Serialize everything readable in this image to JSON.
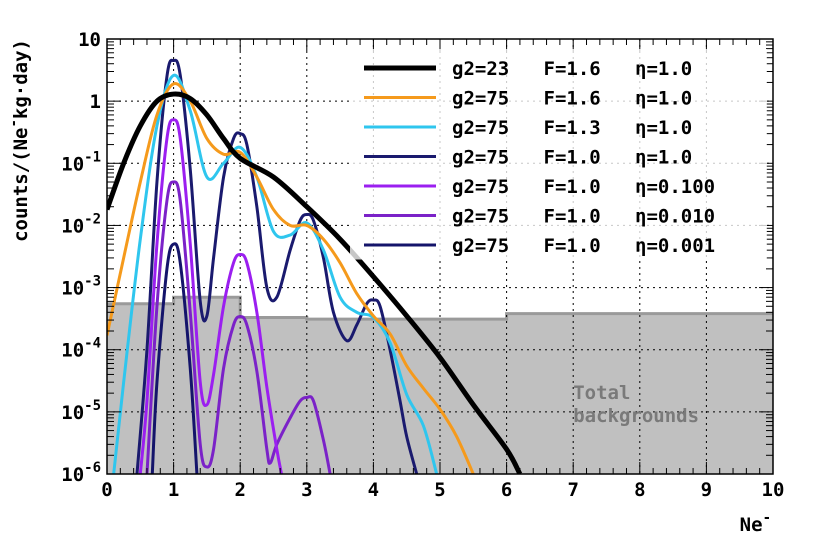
{
  "chart_data": {
    "type": "line",
    "xlabel": "Ne",
    "xlabel_sup": "-",
    "ylabel": "counts/(Ne",
    "ylabel_sup": "-",
    "ylabel_tail": "kg·day)",
    "xlim": [
      0,
      10
    ],
    "ylim": [
      1e-06,
      10
    ],
    "yscale": "log",
    "grid": true,
    "legend_placement": "top-right",
    "x_ticks": [
      "0",
      "1",
      "2",
      "3",
      "4",
      "5",
      "6",
      "7",
      "8",
      "9",
      "10"
    ],
    "y_ticks": [
      {
        "base": "10",
        "exp": "-6"
      },
      {
        "base": "10",
        "exp": "-5"
      },
      {
        "base": "10",
        "exp": "-4"
      },
      {
        "base": "10",
        "exp": "-3"
      },
      {
        "base": "10",
        "exp": "-2"
      },
      {
        "base": "10",
        "exp": "-1"
      },
      {
        "base": "1",
        "exp": ""
      },
      {
        "base": "10",
        "exp": ""
      }
    ],
    "annotation": [
      "Total",
      "backgrounds"
    ],
    "background": {
      "name": "Total backgrounds",
      "color": "#c0c0c0",
      "edge_color": "#9a9a9a",
      "steps": [
        {
          "x0": 0.0,
          "x1": 1.0,
          "y": 0.00055
        },
        {
          "x0": 1.0,
          "x1": 2.0,
          "y": 0.0007
        },
        {
          "x0": 2.0,
          "x1": 3.0,
          "y": 0.00033
        },
        {
          "x0": 3.0,
          "x1": 6.0,
          "y": 0.00031
        },
        {
          "x0": 6.0,
          "x1": 10.0,
          "y": 0.00038
        }
      ]
    },
    "legend": [
      {
        "label": "g2=23   F=1.6   η=1.0",
        "color": "#000000",
        "width": 5
      },
      {
        "label": "g2=75   F=1.6   η=1.0",
        "color": "#f59a1c",
        "width": 3
      },
      {
        "label": "g2=75   F=1.3   η=1.0",
        "color": "#2fc6ee",
        "width": 3
      },
      {
        "label": "g2=75   F=1.0   η=1.0",
        "color": "#1a1a6e",
        "width": 3
      },
      {
        "label": "g2=75   F=1.0   η=0.100",
        "color": "#9b1ff0",
        "width": 3
      },
      {
        "label": "g2=75   F=1.0   η=0.010",
        "color": "#7b22c8",
        "width": 3
      },
      {
        "label": "g2=75   F=1.0   η=0.001",
        "color": "#14146a",
        "width": 3
      }
    ],
    "series": [
      {
        "name": "g2=23   F=1.6   η=1.0",
        "color": "#000000",
        "width": 5,
        "points": [
          [
            0,
            0.018
          ],
          [
            0.25,
            0.1
          ],
          [
            0.5,
            0.4
          ],
          [
            0.75,
            1.0
          ],
          [
            1.0,
            1.3
          ],
          [
            1.25,
            1.1
          ],
          [
            1.5,
            0.6
          ],
          [
            1.75,
            0.25
          ],
          [
            2.0,
            0.12
          ],
          [
            2.5,
            0.06
          ],
          [
            3.0,
            0.02
          ],
          [
            3.5,
            0.006
          ],
          [
            4.0,
            0.0015
          ],
          [
            4.5,
            0.00035
          ],
          [
            5.0,
            7.5e-05
          ],
          [
            5.5,
            1.3e-05
          ],
          [
            6.0,
            2.5e-06
          ],
          [
            6.2,
            1e-06
          ]
        ]
      },
      {
        "name": "g2=75   F=1.6   η=1.0",
        "color": "#f59a1c",
        "width": 3,
        "points": [
          [
            0,
            0.00017
          ],
          [
            0.25,
            0.003
          ],
          [
            0.5,
            0.05
          ],
          [
            0.75,
            0.6
          ],
          [
            1.0,
            1.9
          ],
          [
            1.25,
            1.0
          ],
          [
            1.5,
            0.25
          ],
          [
            1.75,
            0.14
          ],
          [
            2.0,
            0.15
          ],
          [
            2.25,
            0.06
          ],
          [
            2.5,
            0.018
          ],
          [
            2.75,
            0.01
          ],
          [
            3.0,
            0.01
          ],
          [
            3.25,
            0.006
          ],
          [
            3.5,
            0.0025
          ],
          [
            3.75,
            0.0008
          ],
          [
            4.0,
            0.00035
          ],
          [
            4.25,
            0.00018
          ],
          [
            4.5,
            5.5e-05
          ],
          [
            4.75,
            2.4e-05
          ],
          [
            5.0,
            1.1e-05
          ],
          [
            5.25,
            4e-06
          ],
          [
            5.5,
            1e-06
          ]
        ]
      },
      {
        "name": "g2=75   F=1.3   η=1.0",
        "color": "#2fc6ee",
        "width": 3,
        "points": [
          [
            0.1,
            1e-06
          ],
          [
            0.25,
            3e-05
          ],
          [
            0.5,
            0.006
          ],
          [
            0.75,
            0.4
          ],
          [
            1.0,
            2.6
          ],
          [
            1.25,
            0.7
          ],
          [
            1.5,
            0.06
          ],
          [
            1.75,
            0.1
          ],
          [
            2.0,
            0.18
          ],
          [
            2.25,
            0.06
          ],
          [
            2.5,
            0.008
          ],
          [
            2.75,
            0.007
          ],
          [
            3.0,
            0.011
          ],
          [
            3.25,
            0.004
          ],
          [
            3.5,
            0.0007
          ],
          [
            3.75,
            0.0004
          ],
          [
            4.0,
            0.00033
          ],
          [
            4.25,
            0.00013
          ],
          [
            4.5,
            1.9e-05
          ],
          [
            4.75,
            6e-06
          ],
          [
            4.95,
            1e-06
          ]
        ]
      },
      {
        "name": "g2=75   F=1.0   η=1.0",
        "color": "#1a1a6e",
        "width": 3,
        "points": [
          [
            0.45,
            1e-06
          ],
          [
            0.6,
            0.0001
          ],
          [
            0.75,
            0.05
          ],
          [
            0.9,
            2.5
          ],
          [
            1.0,
            4.5
          ],
          [
            1.1,
            2.6
          ],
          [
            1.25,
            0.08
          ],
          [
            1.4,
            0.0006
          ],
          [
            1.5,
            0.00035
          ],
          [
            1.6,
            0.003
          ],
          [
            1.75,
            0.06
          ],
          [
            1.9,
            0.25
          ],
          [
            2.0,
            0.3
          ],
          [
            2.1,
            0.2
          ],
          [
            2.25,
            0.02
          ],
          [
            2.4,
            0.001
          ],
          [
            2.55,
            0.0007
          ],
          [
            2.75,
            0.004
          ],
          [
            2.9,
            0.012
          ],
          [
            3.0,
            0.015
          ],
          [
            3.1,
            0.012
          ],
          [
            3.25,
            0.003
          ],
          [
            3.4,
            0.0004
          ],
          [
            3.6,
            0.00014
          ],
          [
            3.75,
            0.00025
          ],
          [
            3.9,
            0.00055
          ],
          [
            4.0,
            0.00063
          ],
          [
            4.1,
            0.0005
          ],
          [
            4.25,
            0.0001
          ],
          [
            4.4,
            1.5e-05
          ],
          [
            4.5,
            4e-06
          ],
          [
            4.65,
            1e-06
          ]
        ]
      },
      {
        "name": "g2=75   F=1.0   η=0.100",
        "color": "#9b1ff0",
        "width": 3,
        "points": [
          [
            0.5,
            1e-06
          ],
          [
            0.6,
            1.5e-05
          ],
          [
            0.75,
            0.005
          ],
          [
            0.9,
            0.25
          ],
          [
            1.0,
            0.5
          ],
          [
            1.1,
            0.25
          ],
          [
            1.25,
            0.005
          ],
          [
            1.4,
            3e-05
          ],
          [
            1.5,
            1.3e-05
          ],
          [
            1.6,
            4e-05
          ],
          [
            1.75,
            0.0005
          ],
          [
            1.9,
            0.0025
          ],
          [
            2.0,
            0.0034
          ],
          [
            2.1,
            0.0025
          ],
          [
            2.25,
            0.0004
          ],
          [
            2.4,
            2.5e-05
          ],
          [
            2.55,
            2.5e-06
          ],
          [
            2.62,
            1e-06
          ]
        ]
      },
      {
        "name": "g2=75   F=1.0   η=0.010",
        "color": "#7b22c8",
        "width": 3,
        "points": [
          [
            0.6,
            1e-06
          ],
          [
            0.75,
            0.0005
          ],
          [
            0.9,
            0.025
          ],
          [
            1.0,
            0.05
          ],
          [
            1.1,
            0.025
          ],
          [
            1.25,
            0.0004
          ],
          [
            1.4,
            3e-06
          ],
          [
            1.5,
            1.3e-06
          ],
          [
            1.6,
            2.5e-06
          ],
          [
            1.75,
            5e-05
          ],
          [
            1.9,
            0.00025
          ],
          [
            2.0,
            0.00034
          ],
          [
            2.1,
            0.00025
          ],
          [
            2.25,
            4.5e-05
          ],
          [
            2.4,
            2.5e-06
          ],
          [
            2.45,
            1.5e-06
          ],
          [
            2.55,
            3e-06
          ],
          [
            2.75,
            8e-06
          ],
          [
            2.9,
            1.5e-05
          ],
          [
            3.0,
            1.7e-05
          ],
          [
            3.1,
            1.5e-05
          ],
          [
            3.25,
            3.5e-06
          ],
          [
            3.35,
            1e-06
          ]
        ]
      },
      {
        "name": "g2=75   F=1.0   η=0.001",
        "color": "#14146a",
        "width": 3,
        "points": [
          [
            0.68,
            1e-06
          ],
          [
            0.75,
            3e-05
          ],
          [
            0.9,
            0.002
          ],
          [
            1.0,
            0.005
          ],
          [
            1.1,
            0.0025
          ],
          [
            1.25,
            5e-05
          ],
          [
            1.35,
            1e-06
          ]
        ]
      }
    ]
  }
}
